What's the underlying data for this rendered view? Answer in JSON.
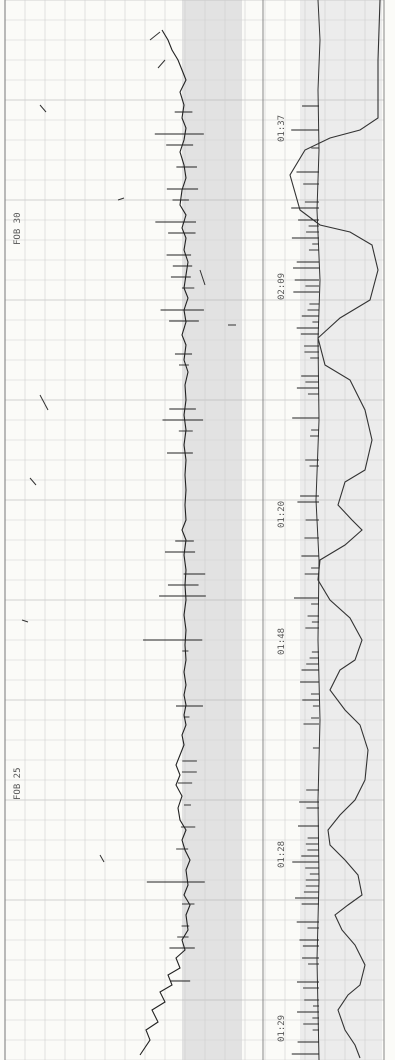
{
  "strip": {
    "paper_color": "#fbfbf8",
    "grid_color": "#c9c9c9",
    "shade_color": "#dedede",
    "trace_color": "#222222",
    "top_labels": [
      "FOB 30",
      "FOB 25"
    ],
    "time_labels": [
      "01:37",
      "02:09",
      "01:20",
      "01:48",
      "01:28",
      "01:29"
    ]
  }
}
